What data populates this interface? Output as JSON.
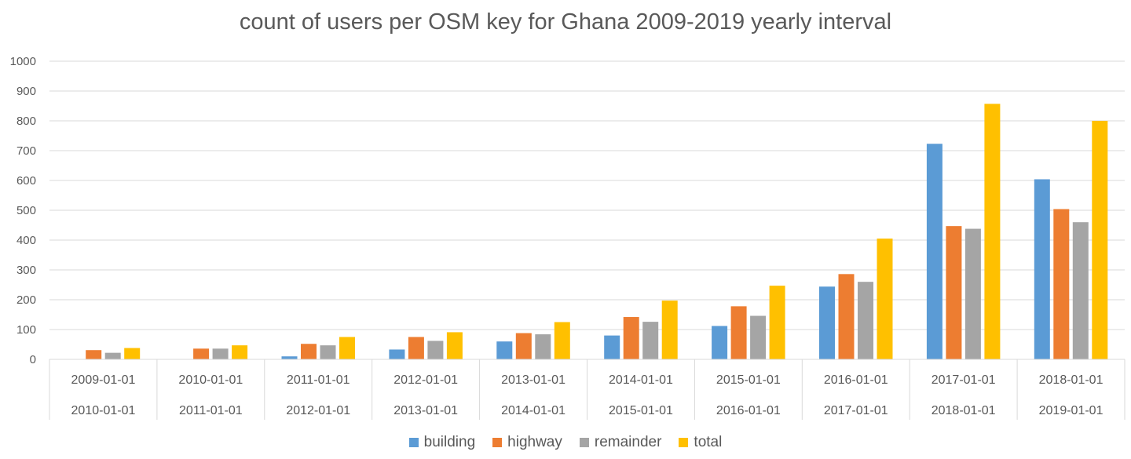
{
  "chart_data": {
    "type": "bar",
    "title": "count of users per OSM key for Ghana 2009-2019 yearly interval",
    "xlabel": "",
    "ylabel": "",
    "ylim": [
      0,
      1000
    ],
    "yticks": [
      "0",
      "100",
      "200",
      "300",
      "400",
      "500",
      "600",
      "700",
      "800",
      "900",
      "1000"
    ],
    "grid": true,
    "legend_position": "bottom",
    "categories": [
      [
        "2009-01-01",
        "2010-01-01"
      ],
      [
        "2010-01-01",
        "2011-01-01"
      ],
      [
        "2011-01-01",
        "2012-01-01"
      ],
      [
        "2012-01-01",
        "2013-01-01"
      ],
      [
        "2013-01-01",
        "2014-01-01"
      ],
      [
        "2014-01-01",
        "2015-01-01"
      ],
      [
        "2015-01-01",
        "2016-01-01"
      ],
      [
        "2016-01-01",
        "2017-01-01"
      ],
      [
        "2017-01-01",
        "2018-01-01"
      ],
      [
        "2018-01-01",
        "2019-01-01"
      ]
    ],
    "series": [
      {
        "name": "building",
        "color": "#5B9BD5",
        "values": [
          0,
          0,
          10,
          33,
          60,
          80,
          112,
          244,
          723,
          604
        ]
      },
      {
        "name": "highway",
        "color": "#ED7D31",
        "values": [
          31,
          36,
          52,
          75,
          88,
          142,
          178,
          286,
          447,
          504
        ]
      },
      {
        "name": "remainder",
        "color": "#A5A5A5",
        "values": [
          22,
          36,
          47,
          62,
          84,
          126,
          146,
          260,
          438,
          460
        ]
      },
      {
        "name": "total",
        "color": "#FFC000",
        "values": [
          38,
          47,
          75,
          91,
          125,
          197,
          247,
          405,
          857,
          800
        ]
      }
    ]
  }
}
